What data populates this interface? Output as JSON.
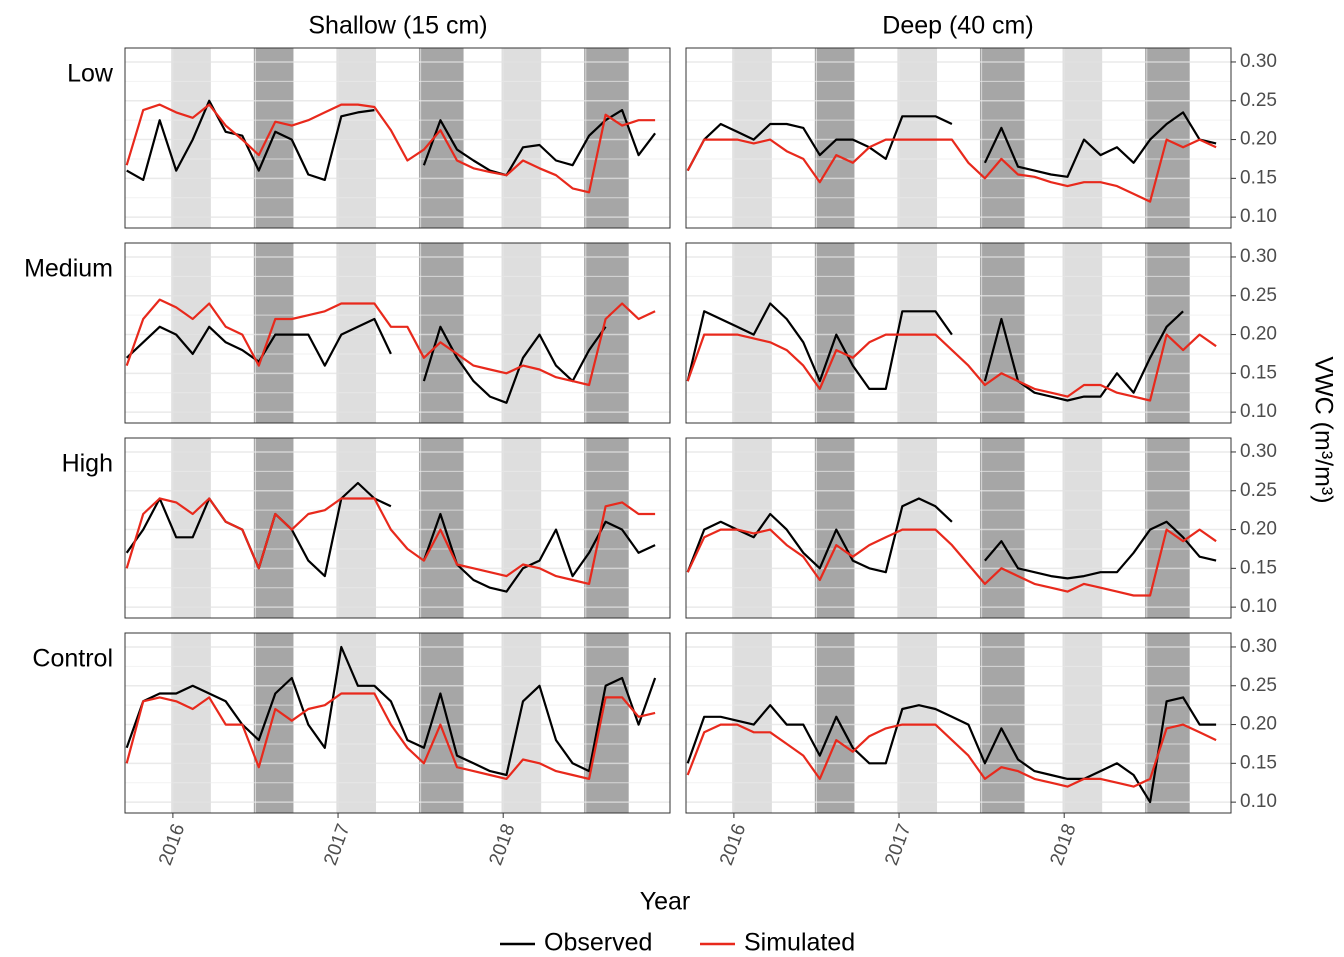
{
  "chart_data": {
    "type": "line",
    "columns": [
      "Shallow (15 cm)",
      "Deep (40 cm)"
    ],
    "xlabel": "Year",
    "ylabel": "VWC (m³/m³)",
    "xlim": [
      2015.71,
      2019.01
    ],
    "xticks": [
      2016,
      2017,
      2018
    ],
    "ylim": [
      0.086,
      0.318
    ],
    "yticks": [
      {
        "value": 0.1,
        "label": "0.10"
      },
      0.15,
      {
        "value": 0.2,
        "label": "0.20"
      },
      0.25,
      {
        "value": 0.3,
        "label": "0.30"
      }
    ],
    "grid": true,
    "legend": "bottom",
    "series": [
      {
        "name": "Observed",
        "color": "#000000"
      },
      {
        "name": "Simulated",
        "color": "#e8291c"
      }
    ],
    "shaded_periods": [
      {
        "start": 2015.99,
        "end": 2016.23,
        "color": "#dedede"
      },
      {
        "start": 2016.49,
        "end": 2016.73,
        "color": "#a6a6a6"
      },
      {
        "start": 2016.99,
        "end": 2017.23,
        "color": "#dedede"
      },
      {
        "start": 2017.49,
        "end": 2017.76,
        "color": "#a6a6a6"
      },
      {
        "start": 2017.99,
        "end": 2018.23,
        "color": "#dedede"
      },
      {
        "start": 2018.49,
        "end": 2018.76,
        "color": "#a6a6a6"
      }
    ],
    "x": [
      2015.72,
      2015.82,
      2015.92,
      2016.02,
      2016.12,
      2016.22,
      2016.32,
      2016.42,
      2016.52,
      2016.62,
      2016.72,
      2016.82,
      2016.92,
      2017.02,
      2017.12,
      2017.22,
      2017.32,
      2017.42,
      2017.52,
      2017.62,
      2017.72,
      2017.82,
      2017.92,
      2018.02,
      2018.12,
      2018.22,
      2018.32,
      2018.42,
      2018.52,
      2018.62,
      2018.72,
      2018.82,
      2018.92
    ],
    "rows": [
      {
        "label": "Low",
        "panels": [
          [
            [
              0.16,
              0.148,
              0.225,
              0.16,
              0.2,
              0.25,
              0.21,
              0.205,
              0.16,
              0.21,
              0.2,
              0.155,
              0.148,
              0.23,
              0.235,
              0.238,
              null,
              null,
              0.167,
              0.225,
              0.187,
              0.173,
              0.16,
              0.154,
              0.19,
              0.193,
              0.173,
              0.167,
              0.205,
              0.225,
              0.238,
              0.18,
              0.208
            ],
            [
              0.167,
              0.238,
              0.245,
              0.235,
              0.228,
              0.245,
              0.218,
              0.2,
              0.18,
              0.223,
              0.218,
              0.225,
              0.235,
              0.245,
              0.245,
              0.242,
              0.212,
              0.173,
              0.187,
              0.212,
              0.173,
              0.163,
              0.158,
              0.154,
              0.173,
              0.163,
              0.154,
              0.137,
              0.132,
              0.232,
              0.218,
              0.225,
              0.225
            ]
          ],
          [
            [
              0.16,
              0.2,
              0.22,
              0.21,
              0.2,
              0.22,
              0.22,
              0.215,
              0.18,
              0.2,
              0.2,
              0.19,
              0.175,
              0.23,
              0.23,
              0.23,
              0.22,
              null,
              0.17,
              0.215,
              0.165,
              0.16,
              0.155,
              0.152,
              0.2,
              0.18,
              0.19,
              0.17,
              0.2,
              0.22,
              0.235,
              0.2,
              0.195
            ],
            [
              0.16,
              0.2,
              0.2,
              0.2,
              0.195,
              0.2,
              0.185,
              0.175,
              0.145,
              0.18,
              0.17,
              0.19,
              0.2,
              0.2,
              0.2,
              0.2,
              0.2,
              0.17,
              0.15,
              0.175,
              0.155,
              0.152,
              0.145,
              0.14,
              0.145,
              0.145,
              0.14,
              0.13,
              0.12,
              0.2,
              0.19,
              0.2,
              0.19
            ]
          ]
        ]
      },
      {
        "label": "Medium",
        "panels": [
          [
            [
              0.17,
              0.19,
              0.21,
              0.2,
              0.175,
              0.21,
              0.19,
              0.18,
              0.165,
              0.2,
              0.2,
              0.2,
              0.16,
              0.2,
              0.21,
              0.22,
              0.175,
              null,
              0.14,
              0.21,
              0.17,
              0.14,
              0.12,
              0.112,
              0.17,
              0.2,
              0.16,
              0.14,
              0.18,
              0.21,
              null,
              null,
              null
            ],
            [
              0.16,
              0.22,
              0.245,
              0.235,
              0.22,
              0.24,
              0.21,
              0.2,
              0.16,
              0.22,
              0.22,
              0.225,
              0.23,
              0.24,
              0.24,
              0.24,
              0.21,
              0.21,
              0.17,
              0.19,
              0.175,
              0.16,
              0.155,
              0.15,
              0.16,
              0.155,
              0.145,
              0.14,
              0.135,
              0.22,
              0.24,
              0.22,
              0.23
            ]
          ],
          [
            [
              0.14,
              0.23,
              0.22,
              0.21,
              0.2,
              0.24,
              0.22,
              0.19,
              0.14,
              0.2,
              0.16,
              0.13,
              0.13,
              0.23,
              0.23,
              0.23,
              0.2,
              null,
              0.14,
              0.22,
              0.14,
              0.125,
              0.12,
              0.115,
              0.12,
              0.12,
              0.15,
              0.125,
              0.17,
              0.21,
              0.23,
              null,
              null
            ],
            [
              0.14,
              0.2,
              0.2,
              0.2,
              0.195,
              0.19,
              0.18,
              0.16,
              0.13,
              0.18,
              0.17,
              0.19,
              0.2,
              0.2,
              0.2,
              0.2,
              0.18,
              0.16,
              0.135,
              0.15,
              0.14,
              0.13,
              0.125,
              0.12,
              0.135,
              0.135,
              0.125,
              0.12,
              0.115,
              0.2,
              0.18,
              0.2,
              0.185
            ]
          ]
        ]
      },
      {
        "label": "High",
        "panels": [
          [
            [
              0.17,
              0.2,
              0.24,
              0.19,
              0.19,
              0.24,
              0.21,
              0.2,
              0.15,
              0.22,
              0.2,
              0.16,
              0.14,
              0.24,
              0.26,
              0.24,
              0.23,
              null,
              0.16,
              0.22,
              0.155,
              0.135,
              0.125,
              0.12,
              0.15,
              0.16,
              0.2,
              0.14,
              0.17,
              0.21,
              0.2,
              0.17,
              0.18
            ],
            [
              0.15,
              0.22,
              0.24,
              0.235,
              0.22,
              0.24,
              0.21,
              0.2,
              0.15,
              0.22,
              0.2,
              0.22,
              0.225,
              0.24,
              0.24,
              0.24,
              0.2,
              0.175,
              0.16,
              0.2,
              0.155,
              0.15,
              0.145,
              0.14,
              0.155,
              0.15,
              0.14,
              0.135,
              0.13,
              0.23,
              0.235,
              0.22,
              0.22
            ]
          ],
          [
            [
              0.145,
              0.2,
              0.21,
              0.2,
              0.19,
              0.22,
              0.2,
              0.17,
              0.15,
              0.2,
              0.16,
              0.15,
              0.145,
              0.23,
              0.24,
              0.23,
              0.21,
              null,
              0.16,
              0.185,
              0.15,
              0.145,
              0.14,
              0.137,
              0.14,
              0.145,
              0.145,
              0.17,
              0.2,
              0.21,
              0.19,
              0.165,
              0.16
            ],
            [
              0.145,
              0.19,
              0.2,
              0.2,
              0.195,
              0.2,
              0.18,
              0.165,
              0.135,
              0.18,
              0.165,
              0.18,
              0.19,
              0.2,
              0.2,
              0.2,
              0.18,
              0.155,
              0.13,
              0.15,
              0.14,
              0.13,
              0.125,
              0.12,
              0.13,
              0.125,
              0.12,
              0.115,
              0.115,
              0.2,
              0.185,
              0.2,
              0.185
            ]
          ]
        ]
      },
      {
        "label": "Control",
        "panels": [
          [
            [
              0.17,
              0.23,
              0.24,
              0.24,
              0.25,
              0.24,
              0.23,
              0.2,
              0.18,
              0.24,
              0.26,
              0.2,
              0.17,
              0.3,
              0.25,
              0.25,
              0.23,
              0.18,
              0.17,
              0.24,
              0.16,
              0.15,
              0.14,
              0.135,
              0.23,
              0.25,
              0.18,
              0.15,
              0.14,
              0.25,
              0.26,
              0.2,
              0.26
            ],
            [
              0.15,
              0.23,
              0.235,
              0.23,
              0.22,
              0.235,
              0.2,
              0.2,
              0.145,
              0.22,
              0.205,
              0.22,
              0.225,
              0.24,
              0.24,
              0.24,
              0.2,
              0.17,
              0.15,
              0.2,
              0.145,
              0.14,
              0.135,
              0.13,
              0.155,
              0.15,
              0.14,
              0.135,
              0.13,
              0.235,
              0.235,
              0.21,
              0.215
            ]
          ],
          [
            [
              0.15,
              0.21,
              0.21,
              0.205,
              0.2,
              0.225,
              0.2,
              0.2,
              0.16,
              0.21,
              0.17,
              0.15,
              0.15,
              0.22,
              0.225,
              0.22,
              0.21,
              0.2,
              0.15,
              0.195,
              0.155,
              0.14,
              0.135,
              0.13,
              0.13,
              0.14,
              0.15,
              0.135,
              0.1,
              0.23,
              0.235,
              0.2,
              0.2
            ],
            [
              0.135,
              0.19,
              0.2,
              0.2,
              0.19,
              0.19,
              0.175,
              0.16,
              0.13,
              0.18,
              0.165,
              0.185,
              0.195,
              0.2,
              0.2,
              0.2,
              0.18,
              0.16,
              0.13,
              0.145,
              0.14,
              0.13,
              0.125,
              0.12,
              0.13,
              0.13,
              0.125,
              0.12,
              0.13,
              0.195,
              0.2,
              0.19,
              0.18
            ]
          ]
        ]
      }
    ]
  }
}
